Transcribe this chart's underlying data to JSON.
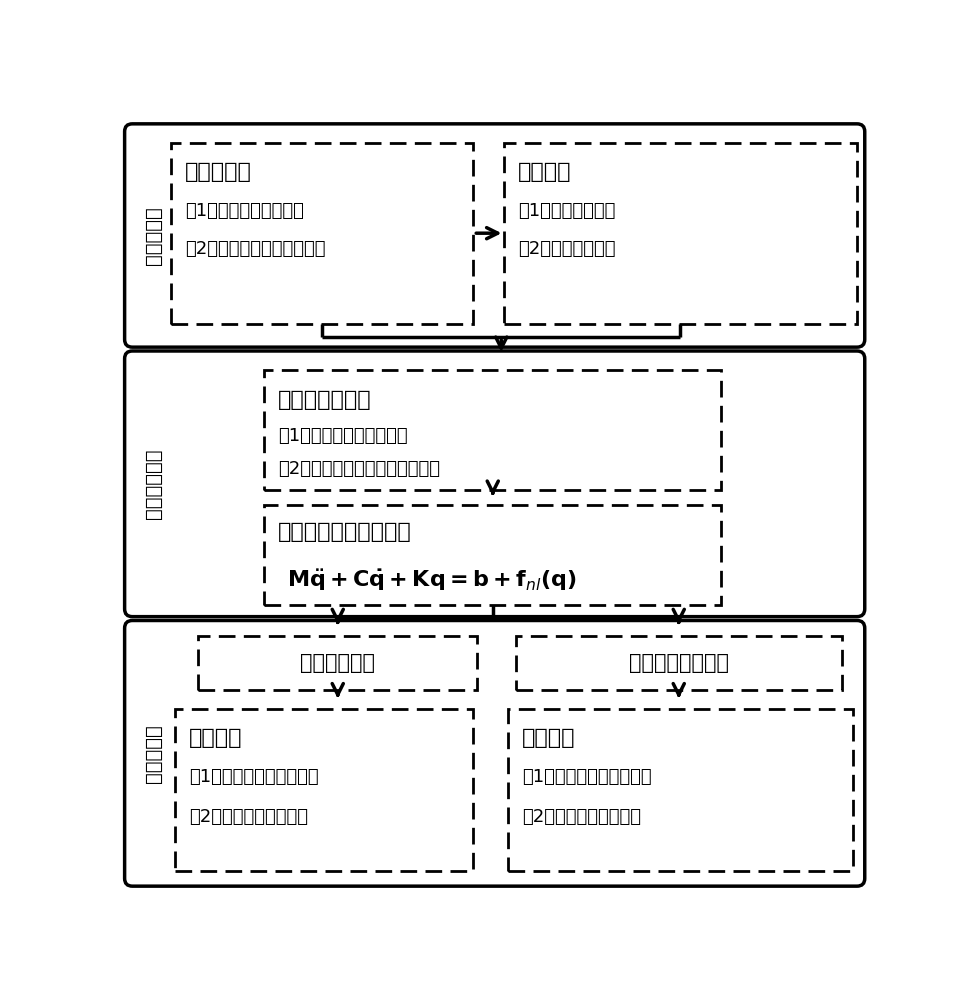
{
  "bg_color": "#ffffff",
  "text_color": "#000000",
  "section1_label": "前处理模块",
  "section2_label": "分析求解模块",
  "section3_label": "后处理模块",
  "box1_title": "有限元模型",
  "box1_lines": [
    "（1）基本扇区旋转变换",
    "（2）质量、阻尼、刚度矩阵"
  ],
  "box2_title": "裂纹模型",
  "box2_lines": [
    "（1）接触对的定义",
    "（2）接触力的计算"
  ],
  "box3_title": "自由度缩减建模",
  "box3_lines": [
    "（1）混合界面模态综合法",
    "（2）大型稀疏矩阵的逆矩阵问题"
  ],
  "box4_title": "系统非线性动力学模型",
  "box5_title": "时域响应分析",
  "box6_title": "谐振频率统计分析",
  "box7_title": "响应结果",
  "box7_lines": [
    "（1）时域响应与频响函数",
    "（2）裂纹对响应的影响"
  ],
  "box8_title": "频率结果",
  "box8_lines": [
    "（1）裂纹结构的频率偏移",
    "（2）同节径频率的分裂"
  ]
}
